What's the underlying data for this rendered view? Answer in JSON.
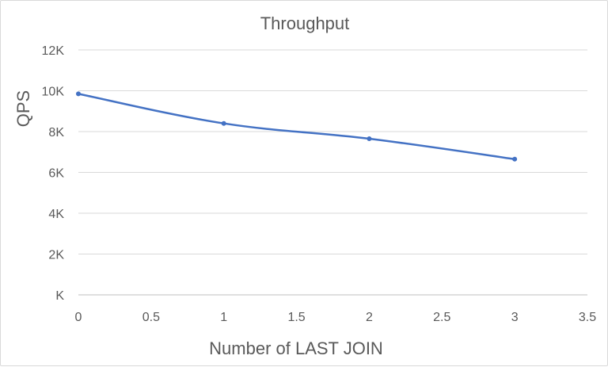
{
  "chart_data": {
    "type": "line",
    "title": "Throughput",
    "xlabel": "Number of LAST JOIN",
    "ylabel": "QPS",
    "xlim": [
      0,
      3.5
    ],
    "ylim": [
      0,
      12000
    ],
    "x_ticks": [
      0,
      0.5,
      1,
      1.5,
      2,
      2.5,
      3,
      3.5
    ],
    "x_tick_labels": [
      "0",
      "0.5",
      "1",
      "1.5",
      "2",
      "2.5",
      "3",
      "3.5"
    ],
    "y_ticks": [
      0,
      2000,
      4000,
      6000,
      8000,
      10000,
      12000
    ],
    "y_tick_labels": [
      "K",
      "2K",
      "4K",
      "6K",
      "8K",
      "10K",
      "12K"
    ],
    "grid": true,
    "legend": "none",
    "series": [
      {
        "color": "#4472c4",
        "x": [
          0,
          1,
          2,
          3
        ],
        "values": [
          9850,
          8400,
          7650,
          6650
        ]
      }
    ]
  }
}
